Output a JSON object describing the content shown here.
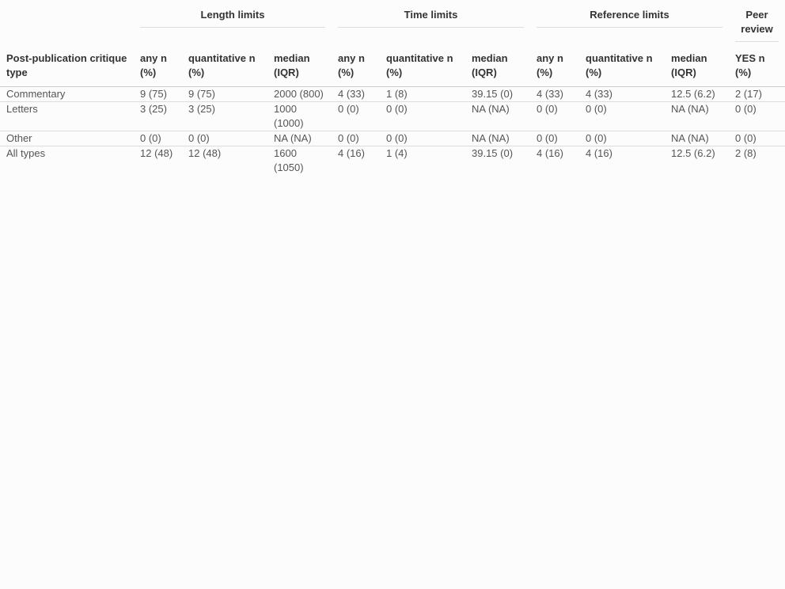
{
  "table": {
    "groups": {
      "length": "Length limits",
      "time": "Time limits",
      "reference": "Reference limits",
      "peer": "Peer review"
    },
    "columns": {
      "type": "Post-publication critique type",
      "len_any": "any n (%)",
      "len_quant": "quantitative n (%)",
      "len_median": "median (IQR)",
      "time_any": "any n (%)",
      "time_quant": "quantitative n (%)",
      "time_median": "median (IQR)",
      "ref_any": "any n (%)",
      "ref_quant": "quantitative n (%)",
      "ref_median": "median (IQR)",
      "peer_yes": "YES n (%)"
    },
    "rows": [
      {
        "type": "Commentary",
        "len_any": "9 (75)",
        "len_quant": "9 (75)",
        "len_median": "2000 (800)",
        "time_any": "4 (33)",
        "time_quant": "1 (8)",
        "time_median": "39.15 (0)",
        "ref_any": "4 (33)",
        "ref_quant": "4 (33)",
        "ref_median": "12.5 (6.2)",
        "peer_yes": "2 (17)"
      },
      {
        "type": "Letters",
        "len_any": "3 (25)",
        "len_quant": "3 (25)",
        "len_median": "1000 (1000)",
        "time_any": "0 (0)",
        "time_quant": "0 (0)",
        "time_median": "NA (NA)",
        "ref_any": "0 (0)",
        "ref_quant": "0 (0)",
        "ref_median": "NA (NA)",
        "peer_yes": "0 (0)"
      },
      {
        "type": "Other",
        "len_any": "0 (0)",
        "len_quant": "0 (0)",
        "len_median": "NA (NA)",
        "time_any": "0 (0)",
        "time_quant": "0 (0)",
        "time_median": "NA (NA)",
        "ref_any": "0 (0)",
        "ref_quant": "0 (0)",
        "ref_median": "NA (NA)",
        "peer_yes": "0 (0)"
      },
      {
        "type": "All types",
        "len_any": "12 (48)",
        "len_quant": "12 (48)",
        "len_median": "1600 (1050)",
        "time_any": "4 (16)",
        "time_quant": "1 (4)",
        "time_median": "39.15 (0)",
        "ref_any": "4 (16)",
        "ref_quant": "4 (16)",
        "ref_median": "12.5 (6.2)",
        "peer_yes": "2 (8)"
      }
    ]
  }
}
